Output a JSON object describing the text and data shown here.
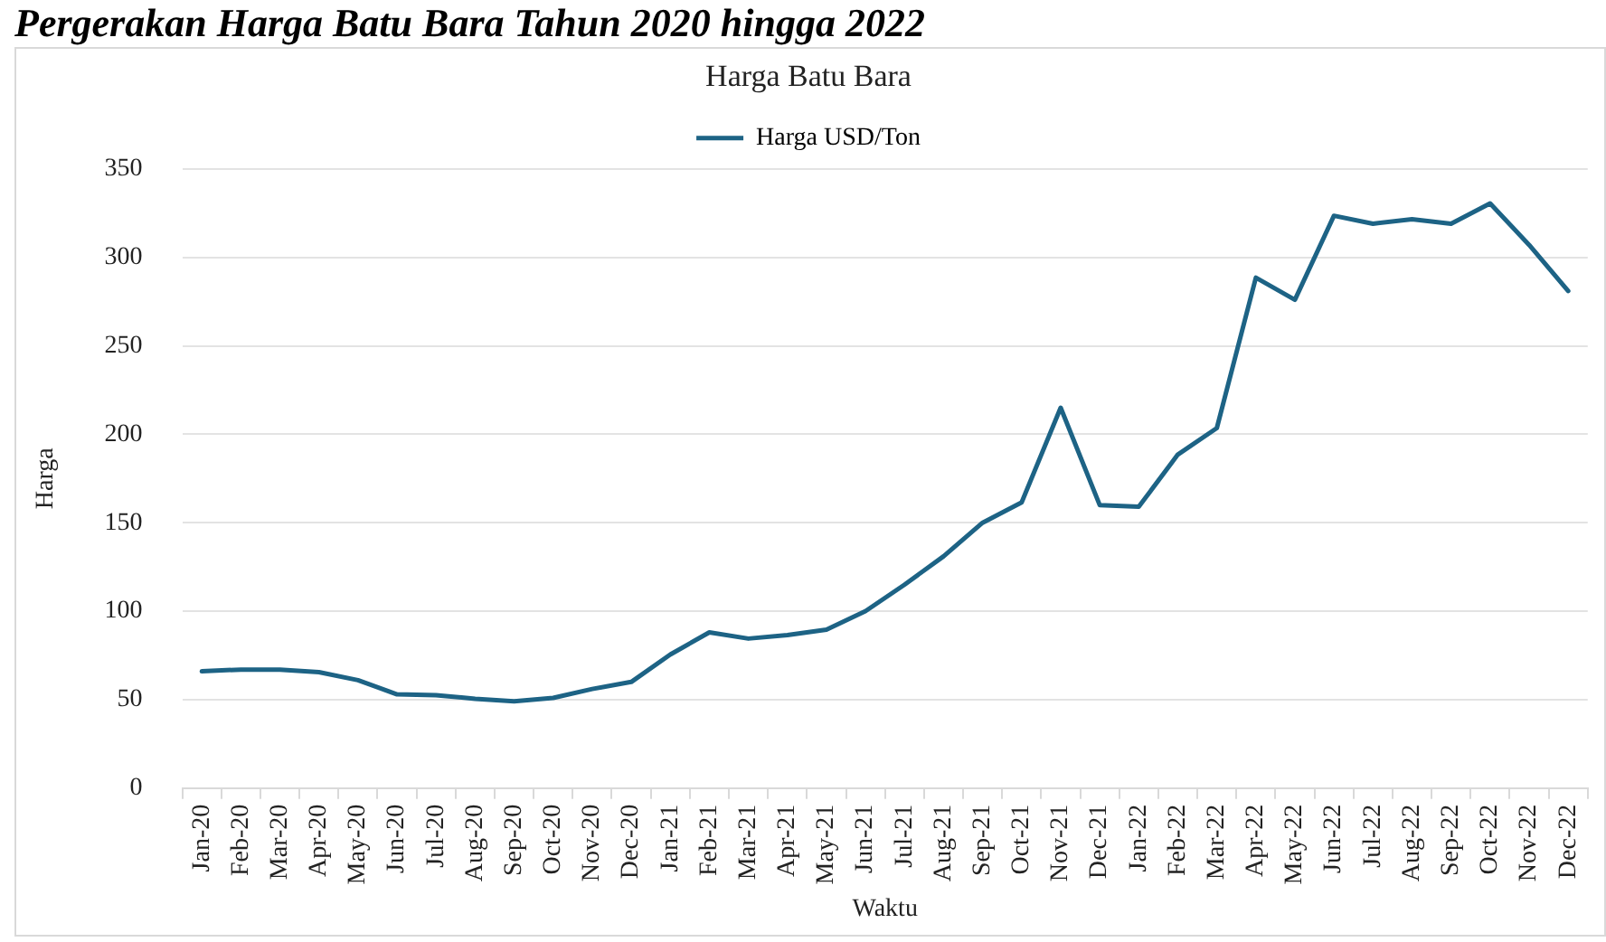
{
  "chart_data": {
    "type": "line",
    "title": "Harga Batu Bara",
    "xlabel": "Waktu",
    "ylabel": "Harga",
    "annotations": [
      "Pergerakan Harga Batu Bara Tahun 2020 hingga 2022"
    ],
    "categories": [
      "Jan-20",
      "Feb-20",
      "Mar-20",
      "Apr-20",
      "May-20",
      "Jun-20",
      "Jul-20",
      "Aug-20",
      "Sep-20",
      "Oct-20",
      "Nov-20",
      "Dec-20",
      "Jan-21",
      "Feb-21",
      "Mar-21",
      "Apr-21",
      "May-21",
      "Jun-21",
      "Jul-21",
      "Aug-21",
      "Sep-21",
      "Oct-21",
      "Nov-21",
      "Dec-21",
      "Jan-22",
      "Feb-22",
      "Mar-22",
      "Apr-22",
      "May-22",
      "Jun-22",
      "Jul-22",
      "Aug-22",
      "Sep-22",
      "Oct-22",
      "Nov-22",
      "Dec-22"
    ],
    "series": [
      {
        "name": "Harga USD/Ton",
        "color": "#1d6385",
        "values": [
          66,
          67,
          67,
          65.5,
          61,
          53,
          52.5,
          50.5,
          49,
          51,
          56,
          60,
          75.5,
          88,
          84.5,
          86.5,
          89.5,
          100,
          115,
          131,
          150,
          161.5,
          215,
          160,
          159,
          188.5,
          203.5,
          288.5,
          276,
          323.5,
          319,
          321.5,
          319,
          330.5,
          307,
          281
        ]
      }
    ],
    "ylim": [
      0,
      350
    ],
    "yticks": [
      0,
      50,
      100,
      150,
      200,
      250,
      300,
      350
    ],
    "grid": "y",
    "legend": "top",
    "marker": "none",
    "line_style": "solid"
  }
}
